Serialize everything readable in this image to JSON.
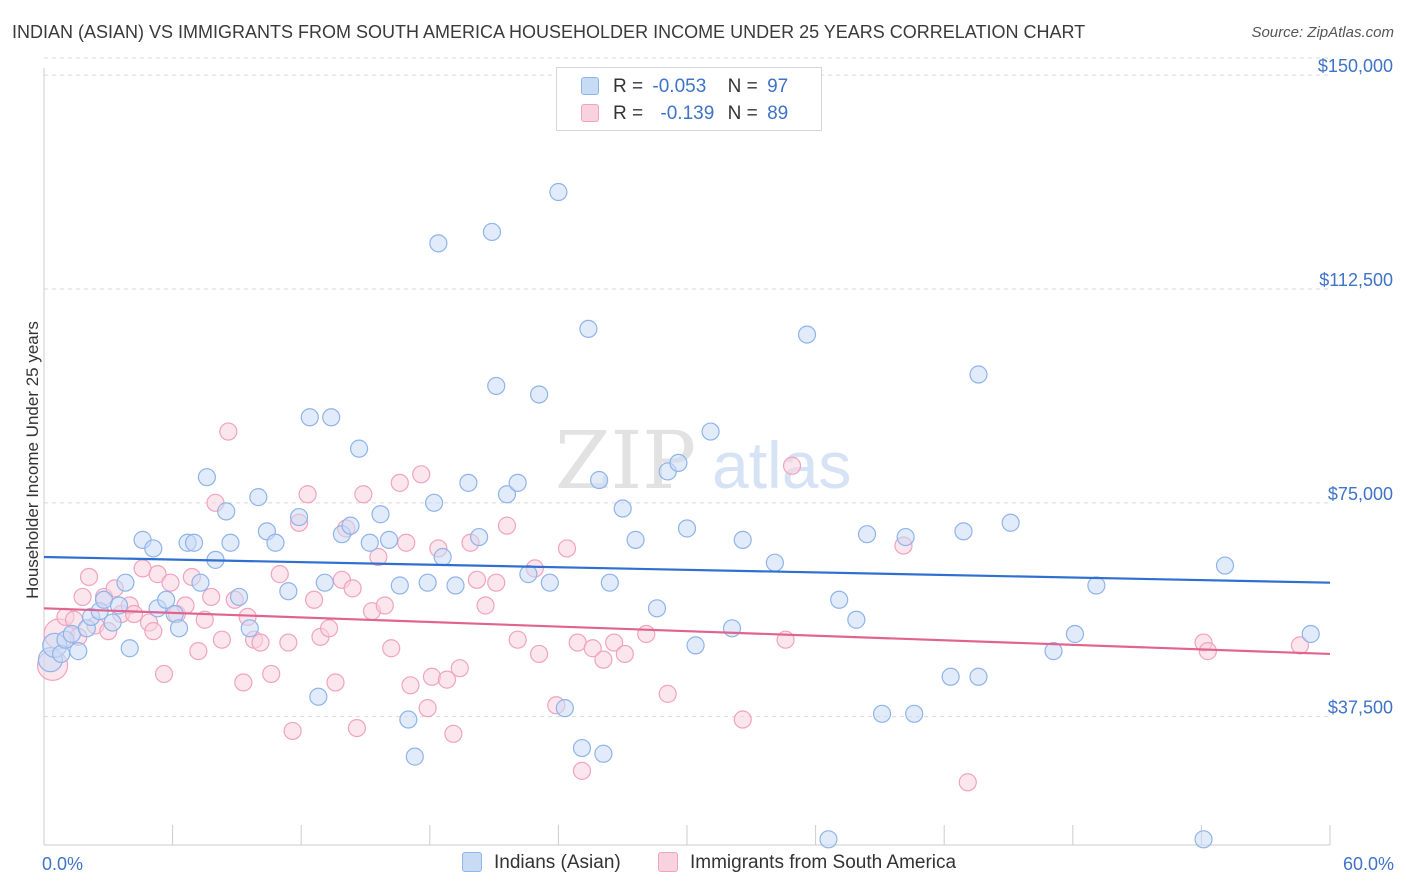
{
  "title": "INDIAN (ASIAN) VS IMMIGRANTS FROM SOUTH AMERICA HOUSEHOLDER INCOME UNDER 25 YEARS CORRELATION CHART",
  "source": "Source: ZipAtlas.com",
  "watermark": {
    "zip": "ZIP",
    "atlas": "atlas"
  },
  "colors": {
    "blue": "#8fb4ea",
    "blue_line": "#2f6fd0",
    "blue_fill": "#c8dbf5",
    "pink": "#f1a3bd",
    "pink_line": "#e0648f",
    "pink_fill": "#f9d2df",
    "axis_text": "#3f73c8",
    "grid": "#d9d9d9"
  },
  "legend": {
    "r_label": "R =",
    "n_label": "N =",
    "series": [
      {
        "r": "-0.053",
        "n": "97"
      },
      {
        "r": "-0.139",
        "n": "89"
      }
    ]
  },
  "chart_data": {
    "type": "scatter",
    "title": "INDIAN (ASIAN) VS IMMIGRANTS FROM SOUTH AMERICA HOUSEHOLDER INCOME UNDER 25 YEARS CORRELATION CHART",
    "xlabel": "",
    "ylabel": "Householder Income Under 25 years",
    "xlim": [
      0,
      60
    ],
    "ylim": [
      15000,
      153000
    ],
    "x_tick_labels": [
      "0.0%",
      "60.0%"
    ],
    "y_ticks": [
      37500,
      75000,
      112500,
      150000
    ],
    "y_tick_labels": [
      "$37,500",
      "$75,000",
      "$112,500",
      "$150,000"
    ],
    "grid": true,
    "legend_position": "top-center",
    "series": [
      {
        "name": "Indians (Asian)",
        "r": -0.053,
        "n": 97,
        "trend": {
          "x": [
            0,
            60
          ],
          "y": [
            65500,
            61000
          ]
        },
        "points": [
          [
            0.3,
            47500
          ],
          [
            0.5,
            50000
          ],
          [
            0.8,
            48500
          ],
          [
            1.0,
            51000
          ],
          [
            1.3,
            52000
          ],
          [
            1.6,
            49000
          ],
          [
            2.0,
            53000
          ],
          [
            2.2,
            55000
          ],
          [
            2.6,
            56000
          ],
          [
            2.8,
            58000
          ],
          [
            3.2,
            54000
          ],
          [
            3.5,
            57000
          ],
          [
            3.8,
            61000
          ],
          [
            4.0,
            49500
          ],
          [
            4.6,
            68500
          ],
          [
            5.1,
            67000
          ],
          [
            5.3,
            56500
          ],
          [
            5.7,
            58000
          ],
          [
            6.1,
            55500
          ],
          [
            6.3,
            53000
          ],
          [
            6.7,
            68000
          ],
          [
            7.0,
            68000
          ],
          [
            7.3,
            61000
          ],
          [
            7.6,
            79500
          ],
          [
            8.0,
            65000
          ],
          [
            8.5,
            73500
          ],
          [
            8.7,
            68000
          ],
          [
            9.1,
            58500
          ],
          [
            9.6,
            53000
          ],
          [
            10.0,
            76000
          ],
          [
            10.4,
            70000
          ],
          [
            10.8,
            68000
          ],
          [
            11.4,
            59500
          ],
          [
            11.9,
            72500
          ],
          [
            12.4,
            90000
          ],
          [
            12.8,
            41000
          ],
          [
            13.1,
            61000
          ],
          [
            13.4,
            90000
          ],
          [
            13.9,
            69500
          ],
          [
            14.3,
            71000
          ],
          [
            14.7,
            84500
          ],
          [
            15.2,
            68000
          ],
          [
            15.7,
            73000
          ],
          [
            16.1,
            68500
          ],
          [
            16.6,
            60500
          ],
          [
            17.0,
            37000
          ],
          [
            17.3,
            30500
          ],
          [
            17.9,
            61000
          ],
          [
            18.2,
            75000
          ],
          [
            18.6,
            65500
          ],
          [
            18.4,
            120500
          ],
          [
            19.2,
            60500
          ],
          [
            19.8,
            78500
          ],
          [
            20.3,
            69000
          ],
          [
            20.9,
            122500
          ],
          [
            21.1,
            95500
          ],
          [
            21.6,
            76500
          ],
          [
            22.1,
            78500
          ],
          [
            22.6,
            62500
          ],
          [
            23.1,
            94000
          ],
          [
            23.6,
            61000
          ],
          [
            24.0,
            129500
          ],
          [
            24.3,
            39000
          ],
          [
            25.1,
            32000
          ],
          [
            25.4,
            105500
          ],
          [
            25.9,
            79000
          ],
          [
            26.1,
            31000
          ],
          [
            26.4,
            61000
          ],
          [
            27.0,
            74000
          ],
          [
            27.6,
            68500
          ],
          [
            28.6,
            56500
          ],
          [
            29.1,
            80500
          ],
          [
            29.6,
            82000
          ],
          [
            30.0,
            70500
          ],
          [
            30.4,
            50000
          ],
          [
            31.1,
            87500
          ],
          [
            32.1,
            53000
          ],
          [
            32.6,
            68500
          ],
          [
            34.1,
            64500
          ],
          [
            35.6,
            104500
          ],
          [
            36.6,
            16000
          ],
          [
            37.1,
            58000
          ],
          [
            37.9,
            54500
          ],
          [
            38.4,
            69500
          ],
          [
            39.1,
            38000
          ],
          [
            40.2,
            69000
          ],
          [
            40.6,
            38000
          ],
          [
            42.3,
            44500
          ],
          [
            42.9,
            70000
          ],
          [
            43.6,
            97500
          ],
          [
            43.6,
            44500
          ],
          [
            45.1,
            71500
          ],
          [
            47.1,
            49000
          ],
          [
            48.1,
            52000
          ],
          [
            49.1,
            60500
          ],
          [
            55.1,
            64000
          ],
          [
            54.1,
            16000
          ],
          [
            59.1,
            52000
          ]
        ]
      },
      {
        "name": "Immigrants from South America",
        "r": -0.139,
        "n": 89,
        "trend": {
          "x": [
            0,
            60
          ],
          "y": [
            56500,
            48500
          ]
        },
        "points": [
          [
            0.4,
            46500
          ],
          [
            0.7,
            52000
          ],
          [
            1.0,
            55000
          ],
          [
            1.4,
            54500
          ],
          [
            1.6,
            51500
          ],
          [
            1.8,
            58500
          ],
          [
            2.1,
            62000
          ],
          [
            2.4,
            53500
          ],
          [
            2.8,
            58500
          ],
          [
            3.0,
            52500
          ],
          [
            3.3,
            60000
          ],
          [
            3.6,
            55500
          ],
          [
            4.0,
            57000
          ],
          [
            4.2,
            55500
          ],
          [
            4.6,
            63500
          ],
          [
            4.9,
            54000
          ],
          [
            5.1,
            52500
          ],
          [
            5.3,
            62500
          ],
          [
            5.6,
            45000
          ],
          [
            5.9,
            61000
          ],
          [
            6.2,
            55500
          ],
          [
            6.6,
            57000
          ],
          [
            6.9,
            62000
          ],
          [
            7.2,
            49000
          ],
          [
            7.5,
            54500
          ],
          [
            7.8,
            58500
          ],
          [
            8.0,
            75000
          ],
          [
            8.3,
            51000
          ],
          [
            8.6,
            87500
          ],
          [
            8.9,
            58000
          ],
          [
            9.3,
            43500
          ],
          [
            9.5,
            55000
          ],
          [
            9.8,
            51000
          ],
          [
            10.1,
            50500
          ],
          [
            10.6,
            45000
          ],
          [
            11.0,
            62500
          ],
          [
            11.4,
            50500
          ],
          [
            11.6,
            35000
          ],
          [
            11.9,
            71500
          ],
          [
            12.3,
            76500
          ],
          [
            12.6,
            58000
          ],
          [
            12.9,
            51500
          ],
          [
            13.3,
            53000
          ],
          [
            13.6,
            43500
          ],
          [
            13.9,
            61500
          ],
          [
            14.1,
            70500
          ],
          [
            14.4,
            60000
          ],
          [
            14.6,
            35500
          ],
          [
            14.9,
            76500
          ],
          [
            15.3,
            56000
          ],
          [
            15.6,
            65500
          ],
          [
            15.9,
            57000
          ],
          [
            16.2,
            49500
          ],
          [
            16.6,
            78500
          ],
          [
            16.9,
            68000
          ],
          [
            17.1,
            43000
          ],
          [
            17.6,
            80000
          ],
          [
            17.9,
            39000
          ],
          [
            18.1,
            44500
          ],
          [
            18.4,
            67000
          ],
          [
            18.8,
            44000
          ],
          [
            19.1,
            34500
          ],
          [
            19.4,
            46000
          ],
          [
            19.9,
            68000
          ],
          [
            20.2,
            61500
          ],
          [
            20.6,
            57000
          ],
          [
            21.1,
            61000
          ],
          [
            21.6,
            71000
          ],
          [
            22.1,
            51000
          ],
          [
            22.9,
            63500
          ],
          [
            23.1,
            48500
          ],
          [
            23.9,
            39500
          ],
          [
            24.4,
            67000
          ],
          [
            24.9,
            50500
          ],
          [
            25.1,
            28000
          ],
          [
            25.6,
            49500
          ],
          [
            26.1,
            47500
          ],
          [
            26.6,
            50500
          ],
          [
            27.1,
            48500
          ],
          [
            28.1,
            52000
          ],
          [
            29.1,
            41500
          ],
          [
            32.6,
            37000
          ],
          [
            34.6,
            51000
          ],
          [
            34.9,
            81500
          ],
          [
            40.1,
            67500
          ],
          [
            43.1,
            26000
          ],
          [
            54.1,
            50500
          ],
          [
            54.3,
            49000
          ],
          [
            58.6,
            50000
          ]
        ]
      }
    ]
  },
  "bottom_legend": {
    "items": [
      {
        "label": "Indians (Asian)"
      },
      {
        "label": "Immigrants from South America"
      }
    ]
  }
}
